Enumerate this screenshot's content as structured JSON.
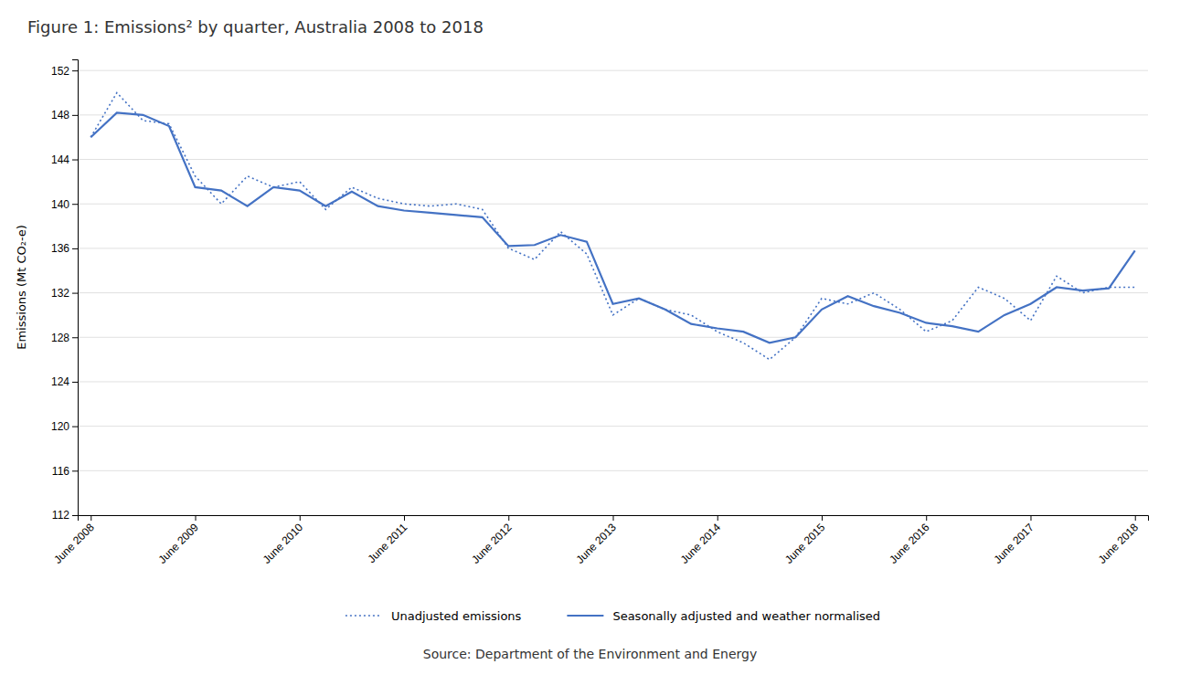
{
  "chart_data": {
    "type": "line",
    "title": "Figure 1: Emissions² by quarter, Australia 2008 to 2018",
    "y_label": "Emissions (Mt CO₂-e)",
    "source": "Source: Department of the Environment and Energy",
    "categories": [
      "June 2008",
      null,
      null,
      null,
      "June 2009",
      null,
      null,
      null,
      "June 2010",
      null,
      null,
      null,
      "June 2011",
      null,
      null,
      null,
      "June 2012",
      null,
      null,
      null,
      "June 2013",
      null,
      null,
      null,
      "June 2014",
      null,
      null,
      null,
      "June 2015",
      null,
      null,
      null,
      "June 2016",
      null,
      null,
      null,
      "June 2017",
      null,
      null,
      null,
      "June 2018"
    ],
    "series": [
      {
        "name": "Unadjusted emissions",
        "color": "#4472C4",
        "line_style": "dotted",
        "values": [
          146.0,
          150.0,
          147.5,
          147.2,
          142.5,
          140.0,
          142.5,
          141.5,
          142.0,
          139.5,
          141.5,
          140.5,
          140.0,
          139.8,
          140.0,
          139.5,
          136.0,
          135.0,
          137.5,
          135.5,
          130.0,
          131.5,
          130.5,
          130.0,
          128.5,
          127.5,
          126.0,
          128.0,
          131.5,
          131.0,
          132.0,
          130.5,
          128.5,
          129.5,
          132.5,
          131.5,
          129.5,
          133.5,
          132.0,
          132.5,
          132.5
        ]
      },
      {
        "name": "Seasonally adjusted and weather normalised",
        "color": "#4472C4",
        "line_style": "solid",
        "values": [
          146.0,
          148.2,
          148.0,
          147.0,
          141.5,
          141.2,
          139.8,
          141.5,
          141.2,
          139.8,
          141.1,
          139.8,
          139.4,
          139.2,
          139.0,
          138.8,
          136.2,
          136.3,
          137.2,
          136.6,
          131.0,
          131.5,
          130.5,
          129.2,
          128.8,
          128.5,
          127.5,
          128.0,
          130.5,
          131.7,
          130.8,
          130.2,
          129.3,
          129.0,
          128.5,
          130.0,
          131.0,
          132.5,
          132.2,
          132.4,
          135.8
        ]
      }
    ],
    "ylim": [
      112,
      153
    ],
    "yticks": [
      112,
      116,
      120,
      124,
      128,
      132,
      136,
      140,
      144,
      148,
      152
    ],
    "grid": true,
    "legend": "bottom"
  }
}
